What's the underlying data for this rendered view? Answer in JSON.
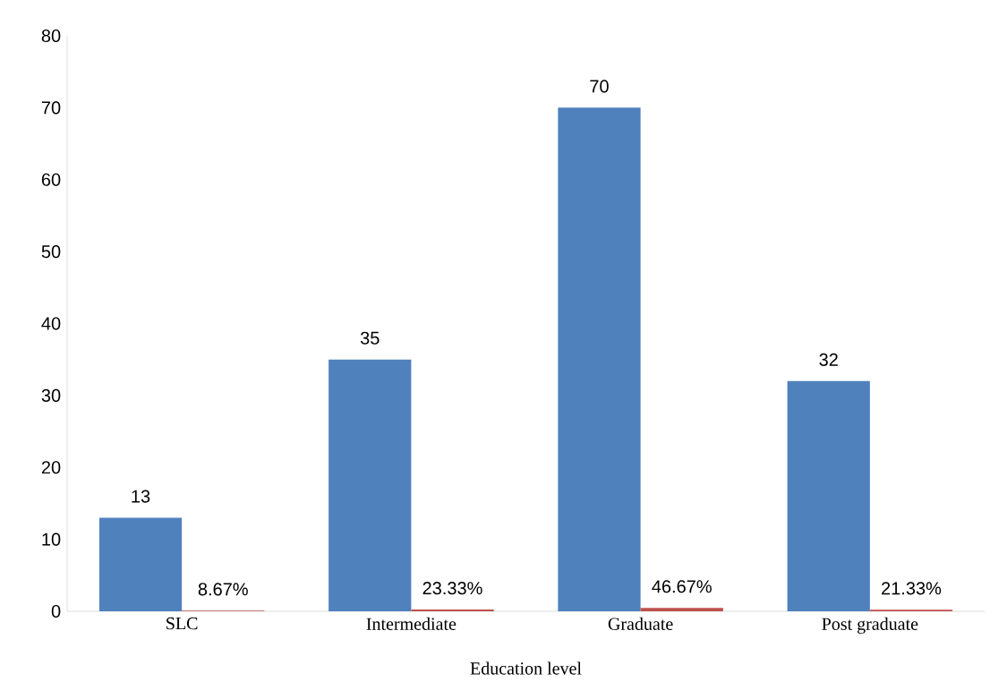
{
  "chart_data": {
    "type": "bar",
    "xlabel": "Education level",
    "categories": [
      "SLC",
      "Intermediate",
      "Graduate",
      "Post graduate"
    ],
    "series": [
      {
        "color": "#4f81bd",
        "values": [
          13,
          35,
          70,
          32
        ],
        "value_labels": [
          "13",
          "35",
          "70",
          "32"
        ]
      },
      {
        "color": "#c0504d",
        "values": [
          0.0867,
          0.2333,
          0.4667,
          0.2133
        ],
        "value_labels": [
          "8.67%",
          "23.33%",
          "46.67%",
          "21.33%"
        ]
      }
    ],
    "ylim": [
      0,
      80
    ],
    "yticks": [
      0,
      10,
      20,
      30,
      40,
      50,
      60,
      70,
      80
    ],
    "grid": false
  }
}
